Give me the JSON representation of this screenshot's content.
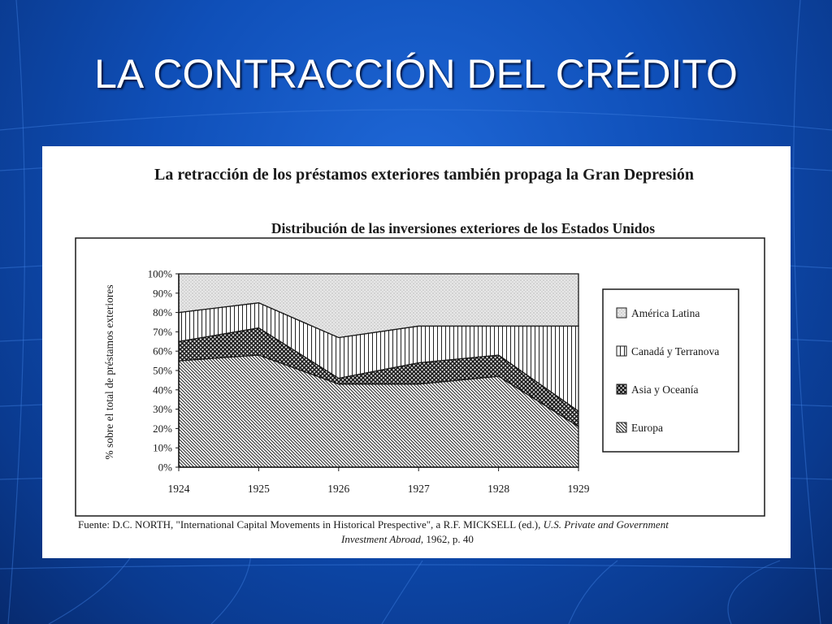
{
  "slide": {
    "title": "LA CONTRACCIÓN DEL CRÉDITO"
  },
  "figure": {
    "headline": "La retracción de los préstamos exteriores también propaga la Gran Depresión",
    "source_prefix": "Fuente: D.C. NORTH, \"International Capital Movements in Historical Prespective\", a R.F. MICKSELL (ed.), ",
    "source_italic_1": "U.S. Private and Government",
    "source_italic_2": "Investment Abroad",
    "source_suffix": ", 1962, p. 40"
  },
  "chart_data": {
    "type": "area",
    "stacked": true,
    "title": "Distribución de las inversiones exteriores de los Estados Unidos",
    "xlabel": "",
    "ylabel": "% sobre el total de préstamos exteriores",
    "x": [
      "1924",
      "1925",
      "1926",
      "1927",
      "1928",
      "1929"
    ],
    "ylim": [
      0,
      100
    ],
    "yticks": [
      "0%",
      "10%",
      "20%",
      "30%",
      "40%",
      "50%",
      "60%",
      "70%",
      "80%",
      "90%",
      "100%"
    ],
    "series": [
      {
        "name": "Europa",
        "values": [
          55,
          58,
          43,
          43,
          47,
          21
        ],
        "pattern": "diagonal-hatch"
      },
      {
        "name": "Asia y Oceanía",
        "values": [
          10,
          14,
          3,
          11,
          11,
          8
        ],
        "pattern": "cross-hatch"
      },
      {
        "name": "Canadá y Terranova",
        "values": [
          15,
          13,
          21,
          19,
          15,
          44
        ],
        "pattern": "vertical-lines"
      },
      {
        "name": "América Latina",
        "values": [
          20,
          15,
          33,
          27,
          27,
          27
        ],
        "pattern": "light-stipple"
      }
    ],
    "legend_order": [
      "América Latina",
      "Canadá y Terranova",
      "Asia y Oceanía",
      "Europa"
    ],
    "legend": "right",
    "grid": false
  },
  "colors": {
    "slide_background": "#0f4fb8",
    "title_text": "#ffffff",
    "panel": "#ffffff",
    "ink": "#1a1a1a"
  }
}
